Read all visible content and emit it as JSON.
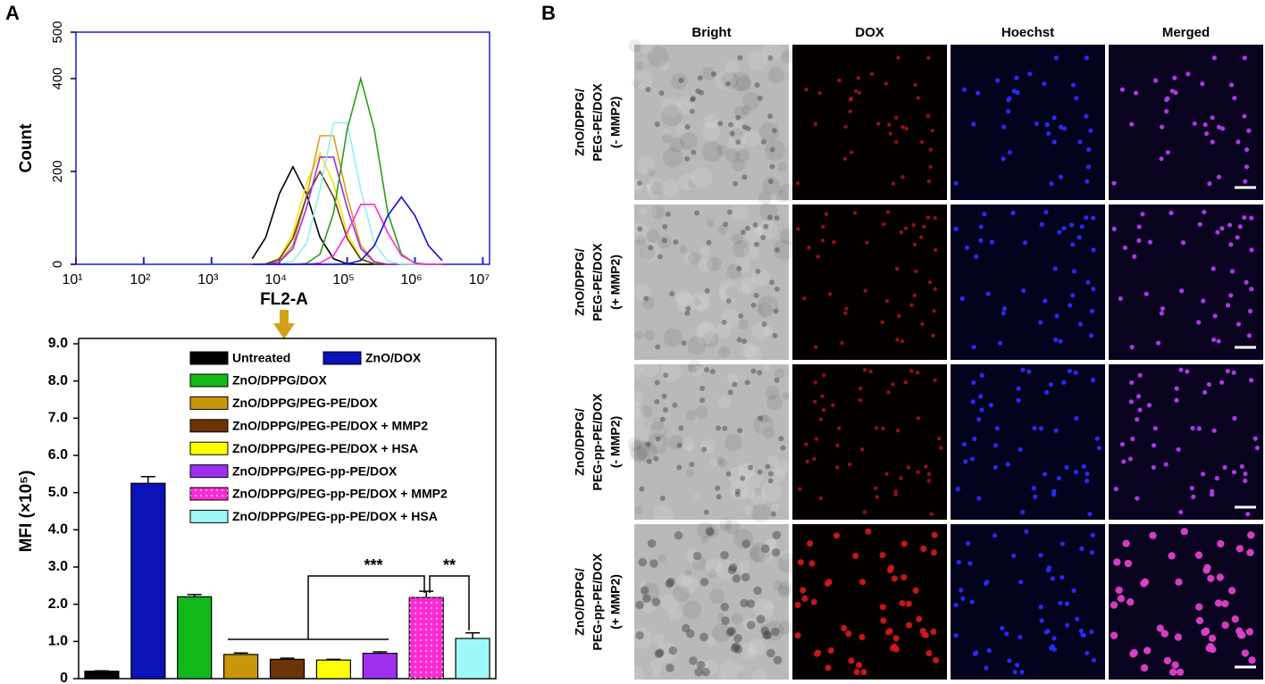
{
  "panel_labels": [
    "A",
    "B"
  ],
  "chart_data": [
    {
      "type": "line",
      "xscale": "log",
      "xlabel": "FL2-A",
      "ylabel": "Count",
      "x": [
        3981,
        6310,
        10000,
        15849,
        25119,
        39811,
        63096,
        100000,
        158489,
        251189,
        398107,
        630957,
        1000000,
        1584893,
        2511886
      ],
      "xlim": [
        10,
        12589254
      ],
      "xticks": [
        {
          "value": 10,
          "label": "10¹"
        },
        {
          "value": 100,
          "label": "10²"
        },
        {
          "value": 1000,
          "label": "10³"
        },
        {
          "value": 10000,
          "label": "10⁴"
        },
        {
          "value": 100000,
          "label": "10⁵"
        },
        {
          "value": 1000000,
          "label": "10⁶"
        },
        {
          "value": 10000000,
          "label": "10⁷"
        }
      ],
      "ylim": [
        0,
        500
      ],
      "yticks": [
        0,
        200,
        400,
        500
      ],
      "axis_color": "#1f1fd0",
      "series": [
        {
          "color": "#000000",
          "values": [
            12,
            58,
            152,
            210,
            152,
            58,
            12,
            1,
            0,
            0,
            0,
            0,
            0,
            0,
            0
          ]
        },
        {
          "color": "#f2e600",
          "values": [
            0,
            1,
            13,
            67,
            174,
            240,
            174,
            67,
            13,
            1,
            0,
            0,
            0,
            0,
            0
          ]
        },
        {
          "color": "#d4a017",
          "values": [
            0,
            0,
            6,
            41,
            146,
            277,
            277,
            146,
            41,
            6,
            0,
            0,
            0,
            0,
            0
          ]
        },
        {
          "color": "#6b3a12",
          "values": [
            0,
            1,
            11,
            56,
            145,
            200,
            145,
            56,
            11,
            1,
            0,
            0,
            0,
            0,
            0
          ]
        },
        {
          "color": "#9b30e8",
          "values": [
            0,
            0,
            5,
            34,
            122,
            231,
            231,
            122,
            34,
            5,
            0,
            0,
            0,
            0,
            0
          ]
        },
        {
          "color": "#8ff0f0",
          "values": [
            0,
            0,
            0,
            7,
            45,
            161,
            305,
            305,
            161,
            45,
            7,
            0,
            0,
            0,
            0
          ]
        },
        {
          "color": "#2e9c1e",
          "values": [
            0,
            0,
            0,
            0,
            2,
            22,
            111,
            290,
            400,
            290,
            111,
            22,
            2,
            0,
            0
          ]
        },
        {
          "color": "#ff2ad4",
          "values": [
            0,
            0,
            0,
            0,
            0,
            3,
            19,
            68,
            129,
            129,
            68,
            19,
            3,
            0,
            0
          ]
        },
        {
          "color": "#1010d8",
          "values": [
            0,
            0,
            0,
            0,
            0,
            0,
            0,
            1,
            8,
            40,
            105,
            145,
            105,
            40,
            8
          ]
        }
      ]
    },
    {
      "type": "bar",
      "ylabel": "MFI (×10⁵)",
      "ylim": [
        0,
        9
      ],
      "yticks": [
        0,
        {
          "value": 1,
          "label": "1.0"
        },
        {
          "value": 2,
          "label": "2.0"
        },
        {
          "value": 3,
          "label": "3.0"
        },
        {
          "value": 4,
          "label": "4.0"
        },
        {
          "value": 5,
          "label": "5.0"
        },
        {
          "value": 6,
          "label": "6.0"
        },
        {
          "value": 7,
          "label": "7.0"
        },
        {
          "value": 8,
          "label": "8.0"
        },
        {
          "value": 9,
          "label": "9.0"
        }
      ],
      "series": [
        {
          "name": "Untreated",
          "color": "#000000",
          "values": [
            0.2
          ],
          "errors": [
            0.01
          ]
        },
        {
          "name": "ZnO/DOX",
          "color": "#0a12b8",
          "values": [
            5.25
          ],
          "errors": [
            0.18
          ]
        },
        {
          "name": "ZnO/DPPG/DOX",
          "color": "#12b81a",
          "values": [
            2.2
          ],
          "errors": [
            0.06
          ]
        },
        {
          "name": "ZnO/DPPG/PEG-PE/DOX",
          "color": "#c8960a",
          "values": [
            0.65
          ],
          "errors": [
            0.04
          ]
        },
        {
          "name": "ZnO/DPPG/PEG-PE/DOX + MMP2",
          "color": "#6b3306",
          "values": [
            0.52
          ],
          "errors": [
            0.03
          ]
        },
        {
          "name": "ZnO/DPPG/PEG-PE/DOX + HSA",
          "color": "#ffff00",
          "values": [
            0.5
          ],
          "errors": [
            0.02
          ]
        },
        {
          "name": "ZnO/DPPG/PEG-pp-PE/DOX",
          "color": "#a030f0",
          "values": [
            0.68
          ],
          "errors": [
            0.04
          ]
        },
        {
          "name": "ZnO/DPPG/PEG-pp-PE/DOX + MMP2",
          "color": "#ff2ad4",
          "values": [
            2.18
          ],
          "errors": [
            0.17
          ],
          "pattern": "dots"
        },
        {
          "name": "ZnO/DPPG/PEG-pp-PE/DOX + HSA",
          "color": "#9ff8f8",
          "values": [
            1.08
          ],
          "errors": [
            0.15
          ]
        }
      ],
      "annotations": [
        "***",
        "**"
      ]
    }
  ],
  "microscopy": {
    "columns": [
      "Bright",
      "DOX",
      "Hoechst",
      "Merged"
    ],
    "rows": [
      [
        "ZnO/DPPG/",
        "PEG-PE/DOX",
        "(- MMP2)"
      ],
      [
        "ZnO/DPPG/",
        "PEG-PE/DOX",
        "(+ MMP2)"
      ],
      [
        "ZnO/DPPG/",
        "PEG-pp-PE/DOX",
        "(- MMP2)"
      ],
      [
        "ZnO/DPPG/",
        "PEG-pp-PE/DOX",
        "(+ MMP2)"
      ]
    ]
  }
}
